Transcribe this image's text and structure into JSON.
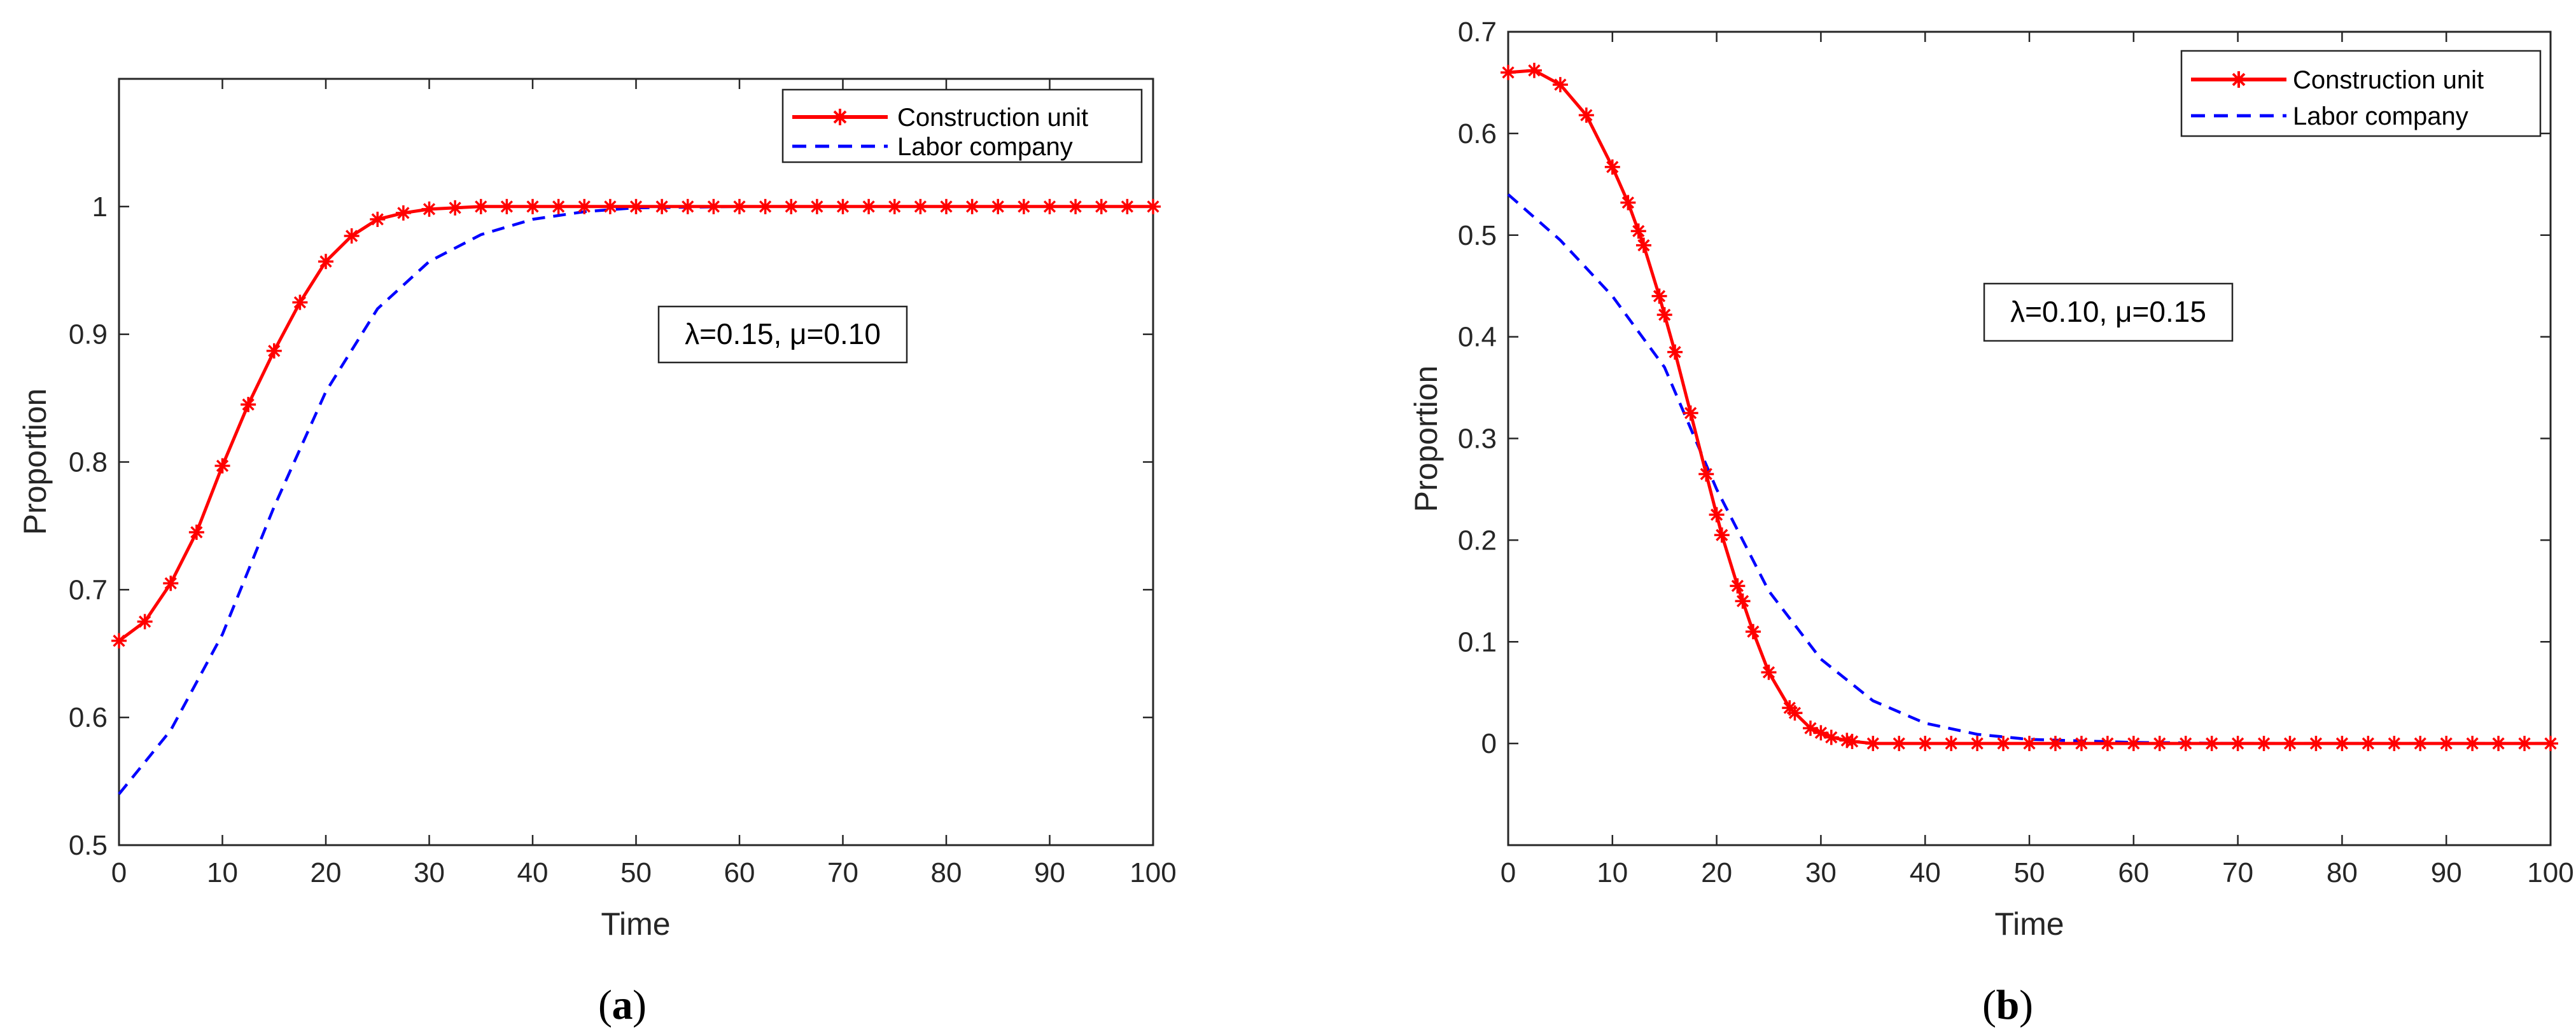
{
  "chart_data": [
    {
      "type": "line",
      "panel_label": "a",
      "caption_open": "(",
      "caption_close": ")",
      "xlabel": "Time",
      "ylabel": "Proportion",
      "xlim": [
        0,
        100
      ],
      "ylim": [
        0.5,
        1.1
      ],
      "xticks": [
        0,
        10,
        20,
        30,
        40,
        50,
        60,
        70,
        80,
        90,
        100
      ],
      "yticks": [
        0.5,
        0.6,
        0.7,
        0.8,
        0.9,
        1
      ],
      "xtick_labels": [
        "0",
        "10",
        "20",
        "30",
        "40",
        "50",
        "60",
        "70",
        "80",
        "90",
        "100"
      ],
      "ytick_labels": [
        "0.5",
        "0.6",
        "0.7",
        "0.8",
        "0.9",
        "1"
      ],
      "legend_position": "top-right",
      "annotation": "λ=0.15, μ=0.10",
      "series": [
        {
          "name": "Construction unit",
          "style": "solid-with-star-markers",
          "color": "#ff0000",
          "x": [
            0,
            2.5,
            5,
            7.5,
            10,
            12.5,
            15,
            17.5,
            20,
            22.5,
            25,
            27.5,
            30,
            35,
            40,
            45,
            50,
            60,
            70,
            80,
            90,
            100
          ],
          "y": [
            0.66,
            0.675,
            0.705,
            0.745,
            0.797,
            0.845,
            0.887,
            0.925,
            0.957,
            0.977,
            0.99,
            0.995,
            0.998,
            1.0,
            1.0,
            1.0,
            1.0,
            1.0,
            1.0,
            1.0,
            1.0,
            1.0
          ]
        },
        {
          "name": "Labor company",
          "style": "dashed",
          "color": "#0000ff",
          "x": [
            0,
            5,
            10,
            15,
            20,
            25,
            30,
            35,
            40,
            45,
            50,
            60,
            70,
            80,
            90,
            100
          ],
          "y": [
            0.54,
            0.59,
            0.665,
            0.765,
            0.855,
            0.92,
            0.957,
            0.978,
            0.99,
            0.996,
            0.999,
            1.0,
            1.0,
            1.0,
            1.0,
            1.0
          ]
        }
      ]
    },
    {
      "type": "line",
      "panel_label": "b",
      "caption_open": "(",
      "caption_close": ")",
      "xlabel": "Time",
      "ylabel": "Proportion",
      "xlim": [
        0,
        100
      ],
      "ylim": [
        -0.1,
        0.7
      ],
      "xticks": [
        0,
        10,
        20,
        30,
        40,
        50,
        60,
        70,
        80,
        90,
        100
      ],
      "yticks": [
        0,
        0.1,
        0.2,
        0.3,
        0.4,
        0.5,
        0.6,
        0.7
      ],
      "xtick_labels": [
        "0",
        "10",
        "20",
        "30",
        "40",
        "50",
        "60",
        "70",
        "80",
        "90",
        "100"
      ],
      "ytick_labels": [
        "0",
        "0.1",
        "0.2",
        "0.3",
        "0.4",
        "0.5",
        "0.6",
        "0.7"
      ],
      "legend_position": "top-right",
      "annotation": "λ=0.10, μ=0.15",
      "series": [
        {
          "name": "Construction unit",
          "style": "solid-with-star-markers",
          "color": "#ff0000",
          "x": [
            0,
            2.5,
            5,
            7.5,
            10,
            11.5,
            13,
            14.5,
            16,
            17.5,
            19,
            20.5,
            22,
            23.5,
            25,
            27,
            29,
            31,
            33,
            35,
            40,
            45,
            50,
            60,
            70,
            80,
            90,
            100
          ],
          "y": [
            0.66,
            0.662,
            0.648,
            0.618,
            0.567,
            0.532,
            0.49,
            0.44,
            0.385,
            0.325,
            0.265,
            0.205,
            0.155,
            0.11,
            0.07,
            0.035,
            0.015,
            0.006,
            0.002,
            0.0,
            0.0,
            0.0,
            0.0,
            0.0,
            0.0,
            0.0,
            0.0,
            0.0
          ]
        },
        {
          "name": "Labor company",
          "style": "dashed",
          "color": "#0000ff",
          "x": [
            0,
            5,
            10,
            15,
            20,
            25,
            30,
            35,
            40,
            45,
            50,
            60,
            70,
            80,
            90,
            100
          ],
          "y": [
            0.54,
            0.495,
            0.44,
            0.37,
            0.25,
            0.15,
            0.083,
            0.042,
            0.02,
            0.009,
            0.004,
            0.001,
            0.0,
            0.0,
            0.0,
            0.0
          ]
        }
      ]
    }
  ]
}
